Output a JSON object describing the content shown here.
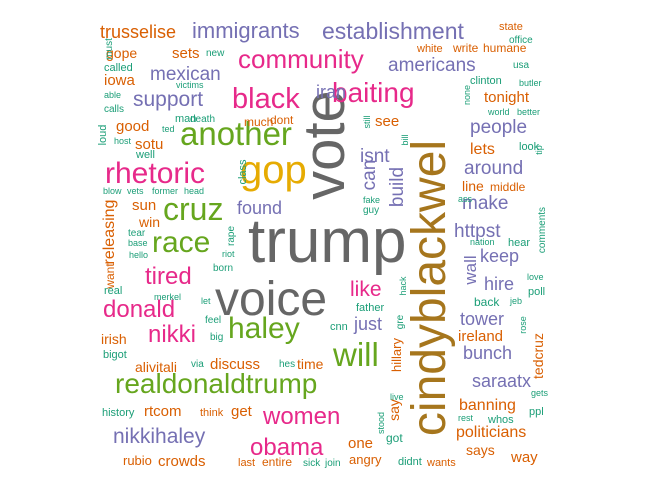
{
  "palette": {
    "orange": "#d95f02",
    "purple": "#7570b3",
    "pink": "#e7298a",
    "green": "#66a61e",
    "gold": "#e6ab02",
    "teal": "#1b9e77",
    "gray": "#666666",
    "brown": "#a6761d"
  },
  "words": [
    {
      "text": "trump",
      "c": "gray"
    },
    {
      "text": "cindyblackwel",
      "c": "brown"
    },
    {
      "text": "voice",
      "c": "gray"
    },
    {
      "text": "vote",
      "c": "gray"
    },
    {
      "text": "gop",
      "c": "gold"
    },
    {
      "text": "another",
      "c": "green"
    },
    {
      "text": "haley",
      "c": "green"
    },
    {
      "text": "realdonaldtrump",
      "c": "green"
    },
    {
      "text": "will",
      "c": "green"
    },
    {
      "text": "rhetoric",
      "c": "pink"
    },
    {
      "text": "cruz",
      "c": "green"
    },
    {
      "text": "race",
      "c": "green"
    },
    {
      "text": "black",
      "c": "pink"
    },
    {
      "text": "baiting",
      "c": "pink"
    },
    {
      "text": "community",
      "c": "pink"
    },
    {
      "text": "women",
      "c": "pink"
    },
    {
      "text": "obama",
      "c": "pink"
    },
    {
      "text": "nikki",
      "c": "pink"
    },
    {
      "text": "donald",
      "c": "pink"
    },
    {
      "text": "tired",
      "c": "pink"
    },
    {
      "text": "like",
      "c": "pink"
    },
    {
      "text": "nikkihaley",
      "c": "purple"
    },
    {
      "text": "establishment",
      "c": "purple"
    },
    {
      "text": "immigrants",
      "c": "purple"
    },
    {
      "text": "support",
      "c": "purple"
    },
    {
      "text": "mexican",
      "c": "purple"
    },
    {
      "text": "americans",
      "c": "purple"
    },
    {
      "text": "iran",
      "c": "purple"
    },
    {
      "text": "found",
      "c": "purple"
    },
    {
      "text": "build",
      "c": "purple"
    },
    {
      "text": "can",
      "c": "purple"
    },
    {
      "text": "isnt",
      "c": "purple"
    },
    {
      "text": "just",
      "c": "purple"
    },
    {
      "text": "people",
      "c": "purple"
    },
    {
      "text": "around",
      "c": "purple"
    },
    {
      "text": "make",
      "c": "purple"
    },
    {
      "text": "httpst",
      "c": "purple"
    },
    {
      "text": "keep",
      "c": "purple"
    },
    {
      "text": "hire",
      "c": "purple"
    },
    {
      "text": "wall",
      "c": "purple"
    },
    {
      "text": "tower",
      "c": "purple"
    },
    {
      "text": "bunch",
      "c": "purple"
    },
    {
      "text": "saraatx",
      "c": "purple"
    },
    {
      "text": "trusselise",
      "c": "orange"
    },
    {
      "text": "gope",
      "c": "orange"
    },
    {
      "text": "sets",
      "c": "orange"
    },
    {
      "text": "iowa",
      "c": "orange"
    },
    {
      "text": "good",
      "c": "orange"
    },
    {
      "text": "sotu",
      "c": "orange"
    },
    {
      "text": "releasing",
      "c": "orange"
    },
    {
      "text": "sun",
      "c": "orange"
    },
    {
      "text": "win",
      "c": "orange"
    },
    {
      "text": "irish",
      "c": "orange"
    },
    {
      "text": "alivitali",
      "c": "orange"
    },
    {
      "text": "discuss",
      "c": "orange"
    },
    {
      "text": "time",
      "c": "orange"
    },
    {
      "text": "rtcom",
      "c": "orange"
    },
    {
      "text": "get",
      "c": "orange"
    },
    {
      "text": "crowds",
      "c": "orange"
    },
    {
      "text": "rubio",
      "c": "orange"
    },
    {
      "text": "one",
      "c": "orange"
    },
    {
      "text": "angry",
      "c": "orange"
    },
    {
      "text": "say",
      "c": "orange"
    },
    {
      "text": "lets",
      "c": "orange"
    },
    {
      "text": "tonight",
      "c": "orange"
    },
    {
      "text": "line",
      "c": "orange"
    },
    {
      "text": "middle",
      "c": "orange"
    },
    {
      "text": "ireland",
      "c": "orange"
    },
    {
      "text": "tedcruz",
      "c": "orange"
    },
    {
      "text": "banning",
      "c": "orange"
    },
    {
      "text": "politicians",
      "c": "orange"
    },
    {
      "text": "says",
      "c": "orange"
    },
    {
      "text": "way",
      "c": "orange"
    },
    {
      "text": "white",
      "c": "orange"
    },
    {
      "text": "write",
      "c": "orange"
    },
    {
      "text": "humane",
      "c": "orange"
    },
    {
      "text": "state",
      "c": "orange"
    },
    {
      "text": "dont",
      "c": "orange"
    },
    {
      "text": "much",
      "c": "orange"
    },
    {
      "text": "see",
      "c": "orange"
    },
    {
      "text": "wants",
      "c": "orange"
    },
    {
      "text": "entire",
      "c": "orange"
    },
    {
      "text": "last",
      "c": "orange"
    },
    {
      "text": "think",
      "c": "orange"
    },
    {
      "text": "hillary",
      "c": "orange"
    },
    {
      "text": "want",
      "c": "orange"
    },
    {
      "text": "office",
      "c": "teal"
    },
    {
      "text": "usa",
      "c": "teal"
    },
    {
      "text": "clinton",
      "c": "teal"
    },
    {
      "text": "butler",
      "c": "teal"
    },
    {
      "text": "none",
      "c": "teal"
    },
    {
      "text": "world",
      "c": "teal"
    },
    {
      "text": "better",
      "c": "teal"
    },
    {
      "text": "look",
      "c": "teal"
    },
    {
      "text": "tip",
      "c": "teal"
    },
    {
      "text": "ass",
      "c": "teal"
    },
    {
      "text": "comments",
      "c": "teal"
    },
    {
      "text": "nation",
      "c": "teal"
    },
    {
      "text": "hear",
      "c": "teal"
    },
    {
      "text": "love",
      "c": "teal"
    },
    {
      "text": "poll",
      "c": "teal"
    },
    {
      "text": "back",
      "c": "teal"
    },
    {
      "text": "jeb",
      "c": "teal"
    },
    {
      "text": "rose",
      "c": "teal"
    },
    {
      "text": "rest",
      "c": "teal"
    },
    {
      "text": "whos",
      "c": "teal"
    },
    {
      "text": "ppl",
      "c": "teal"
    },
    {
      "text": "gets",
      "c": "teal"
    },
    {
      "text": "didnt",
      "c": "teal"
    },
    {
      "text": "stood",
      "c": "teal"
    },
    {
      "text": "live",
      "c": "teal"
    },
    {
      "text": "got",
      "c": "teal"
    },
    {
      "text": "gre",
      "c": "teal"
    },
    {
      "text": "hack",
      "c": "teal"
    },
    {
      "text": "father",
      "c": "teal"
    },
    {
      "text": "cnn",
      "c": "teal"
    },
    {
      "text": "hes",
      "c": "teal"
    },
    {
      "text": "sick",
      "c": "teal"
    },
    {
      "text": "join",
      "c": "teal"
    },
    {
      "text": "history",
      "c": "teal"
    },
    {
      "text": "via",
      "c": "teal"
    },
    {
      "text": "bigot",
      "c": "teal"
    },
    {
      "text": "big",
      "c": "teal"
    },
    {
      "text": "feel",
      "c": "teal"
    },
    {
      "text": "let",
      "c": "teal"
    },
    {
      "text": "merkel",
      "c": "teal"
    },
    {
      "text": "real",
      "c": "teal"
    },
    {
      "text": "hello",
      "c": "teal"
    },
    {
      "text": "base",
      "c": "teal"
    },
    {
      "text": "tear",
      "c": "teal"
    },
    {
      "text": "blow",
      "c": "teal"
    },
    {
      "text": "vets",
      "c": "teal"
    },
    {
      "text": "former",
      "c": "teal"
    },
    {
      "text": "head",
      "c": "teal"
    },
    {
      "text": "rape",
      "c": "teal"
    },
    {
      "text": "riot",
      "c": "teal"
    },
    {
      "text": "born",
      "c": "teal"
    },
    {
      "text": "class",
      "c": "teal"
    },
    {
      "text": "fake",
      "c": "teal"
    },
    {
      "text": "guy",
      "c": "teal"
    },
    {
      "text": "still",
      "c": "teal"
    },
    {
      "text": "bill",
      "c": "teal"
    },
    {
      "text": "well",
      "c": "teal"
    },
    {
      "text": "host",
      "c": "teal"
    },
    {
      "text": "loud",
      "c": "teal"
    },
    {
      "text": "ted",
      "c": "teal"
    },
    {
      "text": "man",
      "c": "teal"
    },
    {
      "text": "death",
      "c": "teal"
    },
    {
      "text": "calls",
      "c": "teal"
    },
    {
      "text": "able",
      "c": "teal"
    },
    {
      "text": "victims",
      "c": "teal"
    },
    {
      "text": "called",
      "c": "teal"
    },
    {
      "text": "new",
      "c": "teal"
    },
    {
      "text": "must",
      "c": "teal"
    }
  ]
}
